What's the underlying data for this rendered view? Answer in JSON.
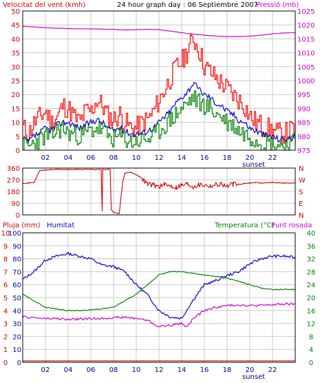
{
  "header": {
    "wind_title": "Velocitat del vent (kmh)",
    "main_title": "24 hour graph day : 06 Septiembre 2007",
    "pressure_title": "Pressió (mb)"
  },
  "colors": {
    "background": "#ffffff",
    "frame": "#000000",
    "grid": "#c8c8c8",
    "wind_gust": "#ff0000",
    "wind_avg": "#0000cc",
    "wind_speed": "#008000",
    "pressure": "#cc00cc",
    "direction": "#cc0000",
    "humidity": "#0000cc",
    "temperature": "#008000",
    "dewpoint": "#cc00cc",
    "rain": "#cc0000"
  },
  "x_ticks": [
    "02",
    "04",
    "06",
    "08",
    "10",
    "12",
    "14",
    "16",
    "18",
    "20",
    "22"
  ],
  "sunset_label": "sunset",
  "chart_data": [
    {
      "type": "line",
      "title": "24 hour graph day : 06 Septiembre 2007",
      "x_range": [
        0,
        24
      ],
      "y_left": {
        "label": "Velocitat del vent (kmh)",
        "lim": [
          0,
          50
        ],
        "ticks": [
          "0",
          "5",
          "10",
          "15",
          "20",
          "25",
          "30",
          "35",
          "40",
          "45",
          "50"
        ]
      },
      "y_right": {
        "label": "Pressió (mb)",
        "lim": [
          975,
          1025
        ],
        "ticks": [
          "975",
          "980",
          "985",
          "990",
          "995",
          "1000",
          "1005",
          "1010",
          "1015",
          "1020",
          "1025"
        ]
      },
      "series": [
        {
          "key": "gust",
          "axis": "left",
          "hours": [
            0,
            0.5,
            1,
            1.5,
            2,
            2.5,
            3,
            3.5,
            4,
            4.5,
            5,
            5.5,
            6,
            6.5,
            7,
            7.5,
            8,
            8.5,
            9,
            9.5,
            10,
            10.5,
            11,
            11.5,
            12,
            12.5,
            13,
            13.5,
            14,
            14.5,
            15,
            15.5,
            16,
            16.5,
            17,
            17.5,
            18,
            18.5,
            19,
            19.5,
            20,
            20.5,
            21,
            21.5,
            22,
            22.5,
            23,
            23.5,
            24
          ],
          "values": [
            8,
            6,
            10,
            12,
            14,
            10,
            12,
            16,
            15,
            12,
            10,
            14,
            14,
            18,
            16,
            12,
            11,
            13,
            10,
            8,
            8,
            10,
            11,
            14,
            18,
            22,
            26,
            30,
            32,
            36,
            40,
            36,
            30,
            28,
            26,
            24,
            22,
            20,
            18,
            16,
            12,
            10,
            9,
            8,
            7,
            6,
            6,
            7,
            8
          ]
        },
        {
          "key": "avg",
          "axis": "left",
          "hours": [
            0,
            0.5,
            1,
            1.5,
            2,
            2.5,
            3,
            3.5,
            4,
            4.5,
            5,
            5.5,
            6,
            6.5,
            7,
            7.5,
            8,
            8.5,
            9,
            9.5,
            10,
            10.5,
            11,
            11.5,
            12,
            12.5,
            13,
            13.5,
            14,
            14.5,
            15,
            15.5,
            16,
            16.5,
            17,
            17.5,
            18,
            18.5,
            19,
            19.5,
            20,
            20.5,
            21,
            21.5,
            22,
            22.5,
            23,
            23.5,
            24
          ],
          "values": [
            4,
            3,
            5,
            6,
            8,
            7,
            9,
            10,
            10,
            9,
            8,
            9,
            10,
            11,
            10,
            8,
            7,
            8,
            7,
            6,
            6,
            6,
            7,
            8,
            10,
            12,
            14,
            17,
            19,
            21,
            24,
            22,
            20,
            19,
            17,
            16,
            14,
            13,
            11,
            10,
            8,
            7,
            6,
            5,
            5,
            4,
            4,
            4,
            5
          ]
        },
        {
          "key": "speed",
          "axis": "left",
          "hours": [
            0,
            0.5,
            1,
            1.5,
            2,
            2.5,
            3,
            3.5,
            4,
            4.5,
            5,
            5.5,
            6,
            6.5,
            7,
            7.5,
            8,
            8.5,
            9,
            9.5,
            10,
            10.5,
            11,
            11.5,
            12,
            12.5,
            13,
            13.5,
            14,
            14.5,
            15,
            15.5,
            16,
            16.5,
            17,
            17.5,
            18,
            18.5,
            19,
            19.5,
            20,
            20.5,
            21,
            21.5,
            22,
            22.5,
            23,
            23.5,
            24
          ],
          "values": [
            2,
            1,
            3,
            4,
            5,
            5,
            7,
            8,
            6,
            6,
            5,
            6,
            7,
            8,
            7,
            5,
            4,
            5,
            4,
            3,
            3,
            4,
            4,
            5,
            7,
            9,
            11,
            13,
            15,
            17,
            19,
            17,
            16,
            15,
            13,
            12,
            10,
            9,
            7,
            6,
            5,
            4,
            3,
            3,
            2,
            2,
            2,
            2,
            3
          ]
        },
        {
          "key": "pressure",
          "axis": "right",
          "hours": [
            0,
            1,
            2,
            3,
            4,
            5,
            6,
            7,
            8,
            9,
            10,
            11,
            12,
            13,
            14,
            15,
            16,
            17,
            18,
            19,
            20,
            21,
            22,
            23,
            24
          ],
          "values": [
            1019.5,
            1019.3,
            1019,
            1018.8,
            1018.7,
            1018.6,
            1018.6,
            1018.5,
            1018.4,
            1018.2,
            1018.3,
            1018.4,
            1018.3,
            1017.8,
            1017.2,
            1016.7,
            1016.3,
            1016.0,
            1015.8,
            1015.8,
            1016.0,
            1016.3,
            1016.8,
            1017.1,
            1017.3
          ]
        }
      ]
    },
    {
      "type": "line",
      "x_range": [
        0,
        24
      ],
      "y_left": {
        "lim": [
          0,
          360
        ],
        "ticks": [
          "0",
          "90",
          "180",
          "270",
          "360"
        ]
      },
      "y_right": {
        "ticks": [
          "N",
          "E",
          "S",
          "W",
          "N"
        ]
      },
      "series": [
        {
          "key": "direction",
          "points": [
            [
              0,
              245
            ],
            [
              0.5,
              245
            ],
            [
              1,
              250
            ],
            [
              1.5,
              340
            ],
            [
              2,
              345
            ],
            [
              3,
              350
            ],
            [
              4,
              348
            ],
            [
              5,
              350
            ],
            [
              6,
              350
            ],
            [
              6.9,
              350
            ],
            [
              7,
              30
            ],
            [
              7.05,
              350
            ],
            [
              7.7,
              350
            ],
            [
              7.8,
              40
            ],
            [
              8,
              20
            ],
            [
              8.5,
              10
            ],
            [
              8.8,
              250
            ],
            [
              9,
              320
            ],
            [
              9.5,
              330
            ],
            [
              10,
              310
            ],
            [
              10.5,
              280
            ],
            [
              11,
              240
            ],
            [
              11.5,
              230
            ],
            [
              12,
              220
            ],
            [
              12.5,
              230
            ],
            [
              13,
              225
            ],
            [
              13.5,
              215
            ],
            [
              14,
              230
            ],
            [
              14.5,
              240
            ],
            [
              15,
              220
            ],
            [
              15.5,
              235
            ],
            [
              16,
              230
            ],
            [
              16.5,
              225
            ],
            [
              17,
              235
            ],
            [
              17.5,
              240
            ],
            [
              18,
              220
            ],
            [
              18.5,
              235
            ],
            [
              19,
              235
            ],
            [
              19.5,
              240
            ],
            [
              20,
              245
            ],
            [
              20.5,
              250
            ],
            [
              21,
              245
            ],
            [
              22,
              250
            ],
            [
              23,
              245
            ],
            [
              24,
              245
            ]
          ]
        }
      ]
    },
    {
      "type": "line",
      "x_range": [
        0,
        24
      ],
      "y_left_rain": {
        "label": "Pluja (mm)",
        "lim": [
          0,
          10
        ],
        "ticks": [
          "0",
          "1",
          "2",
          "3",
          "4",
          "5",
          "6",
          "7",
          "8",
          "9",
          "10"
        ]
      },
      "y_left_humidity": {
        "label": "Humitat",
        "lim": [
          0,
          100
        ],
        "ticks": [
          "0",
          "10",
          "20",
          "30",
          "40",
          "50",
          "60",
          "70",
          "80",
          "90",
          "100"
        ]
      },
      "y_right_temp": {
        "label": "Temperatura (°C)",
        "lim": [
          0,
          40
        ],
        "ticks": [
          "0",
          "4",
          "8",
          "12",
          "16",
          "20",
          "24",
          "28",
          "32",
          "36",
          "40"
        ]
      },
      "dewpoint_label": "Punt rosada",
      "series": [
        {
          "key": "humidity",
          "axis": "humidity",
          "hours": [
            0,
            1,
            2,
            3,
            4,
            5,
            6,
            7,
            8,
            9,
            10,
            11,
            12,
            13,
            14,
            15,
            16,
            17,
            18,
            19,
            20,
            21,
            22,
            23,
            24
          ],
          "values": [
            64,
            70,
            79,
            82,
            84,
            82,
            80,
            75,
            74,
            70,
            60,
            52,
            40,
            35,
            34,
            48,
            60,
            63,
            67,
            70,
            76,
            80,
            82,
            82,
            81
          ]
        },
        {
          "key": "temperature",
          "axis": "temp",
          "hours": [
            0,
            1,
            2,
            3,
            4,
            5,
            6,
            7,
            8,
            9,
            10,
            11,
            12,
            13,
            14,
            15,
            16,
            17,
            18,
            19,
            20,
            21,
            22,
            23,
            24
          ],
          "values": [
            21,
            19,
            17,
            16.5,
            16,
            16,
            16.2,
            16.5,
            17,
            19,
            21,
            24,
            27,
            28,
            28,
            27.5,
            27,
            26.5,
            26,
            25,
            24,
            23,
            22.5,
            22.5,
            22.5
          ]
        },
        {
          "key": "dewpoint",
          "axis": "temp",
          "hours": [
            0,
            1,
            2,
            3,
            4,
            5,
            6,
            7,
            8,
            9,
            10,
            11,
            12,
            13,
            14,
            14.5,
            15,
            16,
            17,
            18,
            19,
            20,
            21,
            22,
            23,
            24
          ],
          "values": [
            14,
            13.8,
            13.5,
            13.5,
            13.2,
            13.4,
            13.5,
            13.6,
            13.8,
            13.9,
            13.6,
            13,
            11,
            11.5,
            12,
            11,
            13.5,
            16,
            17,
            17.5,
            17.8,
            17.5,
            17.6,
            17.8,
            18,
            18
          ]
        },
        {
          "key": "rain",
          "axis": "rain",
          "hours": [
            0,
            24
          ],
          "values": [
            0,
            0
          ]
        }
      ]
    }
  ]
}
